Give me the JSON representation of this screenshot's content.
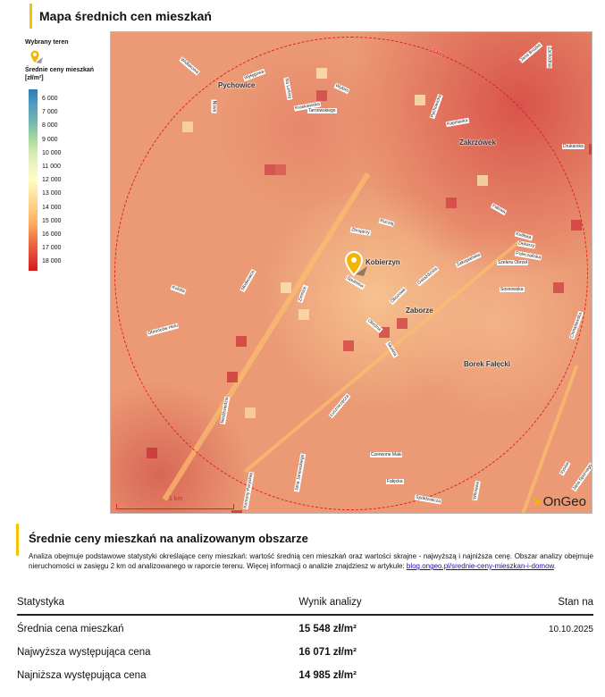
{
  "map_section": {
    "title": "Mapa średnich cen mieszkań",
    "legend": {
      "selected_area_label": "Wybrany teren",
      "price_label": "Średnie ceny mieszkań",
      "unit": "[zł/m²]",
      "ticks": [
        "6 000",
        "7 000",
        "8 000",
        "9 000",
        "10 000",
        "11 000",
        "12 000",
        "13 000",
        "14 000",
        "15 000",
        "16 000",
        "17 000",
        "18 000"
      ]
    },
    "map": {
      "radius_label": "2 km",
      "scale_label": "1 km",
      "districts": [
        "Pychowice",
        "Zakrzówek",
        "Kobierzyn",
        "Zaborze",
        "Borek Fałęcki"
      ],
      "streets": [
        "Widłakowa",
        "Wyłęgowa",
        "Nowa",
        "Na Leśnej",
        "Kraskiewska",
        "Tarnowskiego",
        "Wyłom",
        "Pychowicka",
        "Kapelanka",
        "Jana Brożka",
        "Zachodnia",
        "Drukarska",
        "Ruczaj",
        "Zbrojarzy",
        "Falowa",
        "Kutiłska",
        "Dekarzy",
        "Poleczańska",
        "Szelera Obrzeł",
        "Zakopiańska",
        "Sosnowska",
        "Chmielowska",
        "Sputniów",
        "Zimnice",
        "Słodkowice",
        "Gwiaździsta",
        "Obozowa",
        "Oboźna",
        "Skośna",
        "Łuczniczęcza",
        "Kolista",
        "Obrońców Helu",
        "Niedźwiedzia",
        "Czerwone Maki",
        "Fałęcka",
        "Jana Janowskiego",
        "Komuny Paryskiej",
        "Spółdzielcza",
        "Wilniawa",
        "Irysów",
        "Jana Spornego"
      ],
      "brand": "OnGeo"
    }
  },
  "analysis_section": {
    "title": "Średnie ceny mieszkań na analizowanym obszarze",
    "description": "Analiza obejmuje podstawowe statystyki określające ceny mieszkań: wartość średnią cen mieszkań oraz wartości skrajne - najwyższą i najniższa cenę. Obszar analizy obejmuje nieruchomości w zasięgu 2 km od analizowanego w raporcie terenu. Więcej informacji o analizie znajdziesz w artykule: ",
    "link_text": "blog.ongeo.pl/srednie-ceny-mieszkan-i-domow",
    "link_suffix": ".",
    "table": {
      "headers": [
        "Statystyka",
        "Wynik analizy",
        "Stan na"
      ],
      "rows": [
        {
          "label": "Średnia cena mieszkań",
          "value": "15 548 zł/m²",
          "date": "10.10.2025"
        },
        {
          "label": "Najwyższa występująca cena",
          "value": "16 071 zł/m²",
          "date": ""
        },
        {
          "label": "Najniższa występująca cena",
          "value": "14 985 zł/m²",
          "date": ""
        }
      ]
    }
  },
  "colors": {
    "accent": "#f5c400",
    "circle": "#e02020",
    "low": "#2c7bb6",
    "high": "#d7191c"
  }
}
